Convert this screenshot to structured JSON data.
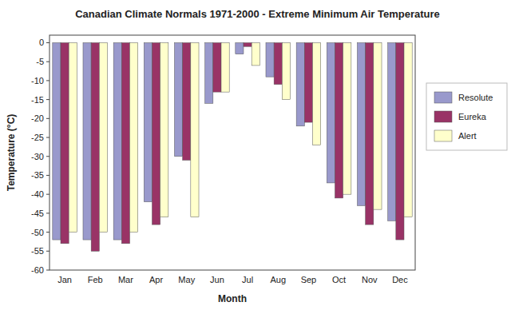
{
  "chart_data": {
    "type": "bar",
    "title": "Canadian Climate Normals 1971-2000 - Extreme Minimum Air Temperature",
    "xlabel": "Month",
    "ylabel": "Temperature (°C)",
    "categories": [
      "Jan",
      "Feb",
      "Mar",
      "Apr",
      "May",
      "Jun",
      "Jul",
      "Aug",
      "Sep",
      "Oct",
      "Nov",
      "Dec"
    ],
    "series": [
      {
        "name": "Resolute",
        "color": "#9999CC",
        "values": [
          -52,
          -52,
          -52,
          -42,
          -30,
          -16,
          -3,
          -9,
          -22,
          -37,
          -43,
          -47
        ]
      },
      {
        "name": "Eureka",
        "color": "#993366",
        "values": [
          -53,
          -55,
          -53,
          -48,
          -31,
          -13,
          -1,
          -11,
          -21,
          -41,
          -48,
          -52
        ]
      },
      {
        "name": "Alert",
        "color": "#FFFFCC",
        "values": [
          -50,
          -50,
          -50,
          -46,
          -46,
          -13,
          -6,
          -15,
          -27,
          -40,
          -44,
          -46
        ]
      }
    ],
    "ylim": [
      -60,
      2
    ],
    "yticks": [
      0,
      -5,
      -10,
      -15,
      -20,
      -25,
      -30,
      -35,
      -40,
      -45,
      -50,
      -55,
      -60
    ],
    "grid": false,
    "legend": "right"
  }
}
